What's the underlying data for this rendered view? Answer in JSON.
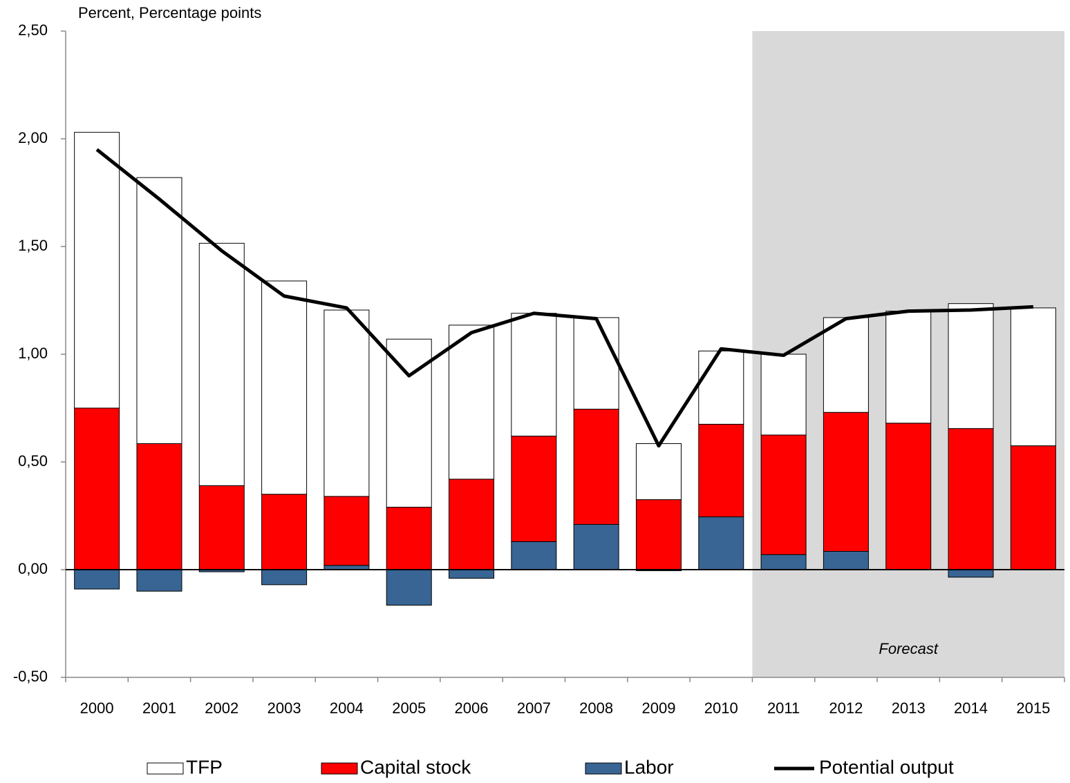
{
  "chart_data": {
    "type": "stacked_bar_line",
    "ylabel": "Percent, Percentage points",
    "categories": [
      "2000",
      "2001",
      "2002",
      "2003",
      "2004",
      "2005",
      "2006",
      "2007",
      "2008",
      "2009",
      "2010",
      "2011",
      "2012",
      "2013",
      "2014",
      "2015"
    ],
    "series": [
      {
        "name": "TFP",
        "color": "#ffffff",
        "values": [
          1.28,
          1.235,
          1.125,
          0.99,
          0.865,
          0.78,
          0.715,
          0.57,
          0.425,
          0.26,
          0.34,
          0.375,
          0.44,
          0.52,
          0.58,
          0.64
        ]
      },
      {
        "name": "Capital stock",
        "color": "#ff0000",
        "values": [
          0.75,
          0.585,
          0.39,
          0.35,
          0.32,
          0.29,
          0.42,
          0.49,
          0.535,
          0.325,
          0.43,
          0.555,
          0.645,
          0.68,
          0.655,
          0.575
        ]
      },
      {
        "name": "Labor",
        "color": "#386593",
        "values": [
          -0.09,
          -0.1,
          -0.01,
          -0.07,
          0.02,
          -0.165,
          -0.04,
          0.13,
          0.21,
          -0.005,
          0.245,
          0.07,
          0.085,
          0,
          -0.035,
          0
        ]
      },
      {
        "name": "Potential output",
        "color": "#000000",
        "type": "line",
        "values": [
          1.95,
          1.72,
          1.48,
          1.27,
          1.215,
          0.9,
          1.1,
          1.19,
          1.165,
          0.575,
          1.025,
          0.995,
          1.165,
          1.2,
          1.205,
          1.22
        ]
      }
    ],
    "annotation": {
      "text": "Forecast",
      "start": "2011",
      "end": "2015",
      "color": "#d9d9d9"
    },
    "ylim": [
      -0.5,
      2.5
    ],
    "yticks": [
      {
        "value": -0.5,
        "label": "-0,50"
      },
      {
        "value": 0,
        "label": "0,00"
      },
      {
        "value": 0.5,
        "label": "0,50"
      },
      {
        "value": 1,
        "label": "1,00"
      },
      {
        "value": 1.5,
        "label": "1,50"
      },
      {
        "value": 2,
        "label": "2,00"
      },
      {
        "value": 2.5,
        "label": "2,50"
      }
    ]
  }
}
